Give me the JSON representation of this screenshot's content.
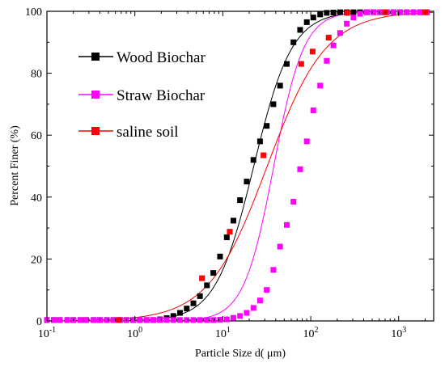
{
  "chart_data": {
    "type": "scatter",
    "xlabel": "Particle Size d( μm)",
    "ylabel": "Percent Finer (%)",
    "x_scale": "log",
    "xlim": [
      0.1,
      2500
    ],
    "ylim": [
      0,
      100
    ],
    "x_ticks": [
      {
        "value": 0.1,
        "base": "10",
        "exp": "-1"
      },
      {
        "value": 1,
        "base": "10",
        "exp": "0"
      },
      {
        "value": 10,
        "base": "10",
        "exp": "1"
      },
      {
        "value": 100,
        "base": "10",
        "exp": "2"
      },
      {
        "value": 1000,
        "base": "10",
        "exp": "3"
      }
    ],
    "y_ticks": [
      "0",
      "20",
      "40",
      "60",
      "80",
      "100"
    ],
    "legend_position": "top-left",
    "grid": false,
    "series": [
      {
        "name": "Wood Biochar",
        "color": "#000000",
        "marker": "square",
        "fit_curve": {
          "type": "logistic",
          "x50": 22.5,
          "slope": 2.0
        },
        "points": [
          [
            0.1,
            0.3
          ],
          [
            0.12,
            0.3
          ],
          [
            0.14,
            0.3
          ],
          [
            0.17,
            0.3
          ],
          [
            0.2,
            0.3
          ],
          [
            0.24,
            0.3
          ],
          [
            0.28,
            0.3
          ],
          [
            0.34,
            0.3
          ],
          [
            0.4,
            0.3
          ],
          [
            0.48,
            0.3
          ],
          [
            0.57,
            0.3
          ],
          [
            0.68,
            0.3
          ],
          [
            0.8,
            0.3
          ],
          [
            0.96,
            0.3
          ],
          [
            1.14,
            0.3
          ],
          [
            1.36,
            0.3
          ],
          [
            1.62,
            0.3
          ],
          [
            1.93,
            0.5
          ],
          [
            2.3,
            0.9
          ],
          [
            2.74,
            1.6
          ],
          [
            3.26,
            2.6
          ],
          [
            3.89,
            4.0
          ],
          [
            4.63,
            5.7
          ],
          [
            5.5,
            8.0
          ],
          [
            6.6,
            11.5
          ],
          [
            7.8,
            15.5
          ],
          [
            9.3,
            20.8
          ],
          [
            11.1,
            27.0
          ],
          [
            13.2,
            32.4
          ],
          [
            15.7,
            39.0
          ],
          [
            18.7,
            45.0
          ],
          [
            22.3,
            52.0
          ],
          [
            26.5,
            58.0
          ],
          [
            31.6,
            63.0
          ],
          [
            37.6,
            70.0
          ],
          [
            44.8,
            76.0
          ],
          [
            53.4,
            83.0
          ],
          [
            63.6,
            90.0
          ],
          [
            75.7,
            94.0
          ],
          [
            90.2,
            96.5
          ],
          [
            107,
            98.0
          ],
          [
            128,
            99.0
          ],
          [
            152,
            99.5
          ],
          [
            181,
            99.6
          ],
          [
            216,
            99.7
          ],
          [
            257,
            99.7
          ],
          [
            306,
            99.7
          ],
          [
            364,
            99.7
          ],
          [
            434,
            99.7
          ],
          [
            517,
            99.7
          ],
          [
            615,
            99.7
          ],
          [
            733,
            99.7
          ],
          [
            873,
            99.7
          ],
          [
            1040,
            99.7
          ],
          [
            1238,
            99.7
          ],
          [
            1474,
            99.7
          ],
          [
            1755,
            99.7
          ],
          [
            2090,
            99.7
          ]
        ]
      },
      {
        "name": "Straw Biochar",
        "color": "#ff00ff",
        "marker": "square",
        "fit_curve": {
          "type": "logistic",
          "x50": 38.0,
          "slope": 2.55
        },
        "points": [
          [
            0.1,
            0.3
          ],
          [
            0.12,
            0.3
          ],
          [
            0.14,
            0.3
          ],
          [
            0.17,
            0.3
          ],
          [
            0.2,
            0.3
          ],
          [
            0.24,
            0.3
          ],
          [
            0.28,
            0.3
          ],
          [
            0.34,
            0.3
          ],
          [
            0.4,
            0.3
          ],
          [
            0.48,
            0.3
          ],
          [
            0.57,
            0.3
          ],
          [
            0.68,
            0.3
          ],
          [
            0.8,
            0.3
          ],
          [
            0.96,
            0.3
          ],
          [
            1.14,
            0.3
          ],
          [
            1.36,
            0.3
          ],
          [
            1.62,
            0.3
          ],
          [
            1.93,
            0.3
          ],
          [
            2.3,
            0.3
          ],
          [
            2.74,
            0.3
          ],
          [
            3.26,
            0.3
          ],
          [
            3.89,
            0.3
          ],
          [
            4.63,
            0.3
          ],
          [
            5.5,
            0.3
          ],
          [
            6.6,
            0.3
          ],
          [
            7.8,
            0.3
          ],
          [
            9.3,
            0.4
          ],
          [
            11.1,
            0.5
          ],
          [
            13.2,
            1.0
          ],
          [
            15.7,
            1.6
          ],
          [
            18.7,
            2.6
          ],
          [
            22.3,
            4.2
          ],
          [
            26.5,
            6.6
          ],
          [
            31.6,
            10.0
          ],
          [
            37.6,
            16.5
          ],
          [
            44.8,
            24.0
          ],
          [
            53.4,
            31.0
          ],
          [
            63.6,
            38.5
          ],
          [
            75.7,
            49.0
          ],
          [
            90.2,
            58.0
          ],
          [
            107,
            68.0
          ],
          [
            128,
            76.0
          ],
          [
            152,
            84.0
          ],
          [
            181,
            89.0
          ],
          [
            216,
            93.0
          ],
          [
            257,
            96.0
          ],
          [
            306,
            98.0
          ],
          [
            364,
            99.2
          ],
          [
            434,
            99.7
          ],
          [
            517,
            99.7
          ],
          [
            615,
            99.7
          ],
          [
            733,
            99.7
          ],
          [
            873,
            99.7
          ],
          [
            1040,
            99.7
          ],
          [
            1238,
            99.7
          ],
          [
            1474,
            99.7
          ],
          [
            1755,
            99.7
          ],
          [
            2090,
            99.7
          ]
        ]
      },
      {
        "name": "saline soil",
        "color": "#ff0000",
        "marker": "square",
        "fit_curve": {
          "type": "logistic",
          "x50": 32.0,
          "slope": 1.3
        },
        "points": [
          [
            0.65,
            0.3
          ],
          [
            5.8,
            13.8
          ],
          [
            12.0,
            28.8
          ],
          [
            29.0,
            53.5
          ],
          [
            78.0,
            83.0
          ],
          [
            105.0,
            87.0
          ],
          [
            160.0,
            91.5
          ],
          [
            260.0,
            99.5
          ],
          [
            700.0,
            99.7
          ],
          [
            2000.0,
            99.7
          ]
        ]
      }
    ]
  }
}
